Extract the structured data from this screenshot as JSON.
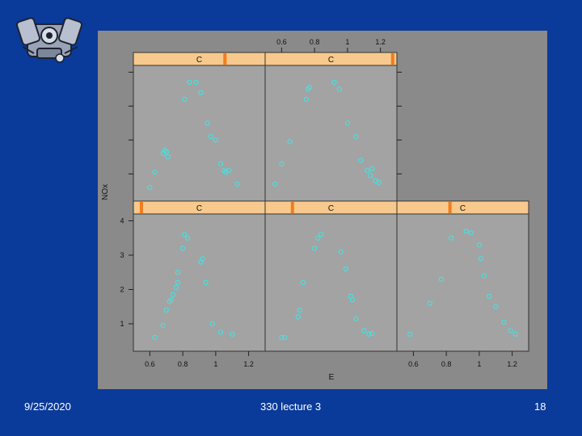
{
  "slide": {
    "date": "9/25/2020",
    "footer_center": "330 lecture 3",
    "page_number": "18",
    "logo_icon": "engine-icon"
  },
  "colors": {
    "background": "#0a3a9a",
    "plot_bg": "#8a8a8a",
    "panel_bg": "#a3a3a3",
    "strip_bg": "#f7c98c",
    "strip_marker": "#f47c1c",
    "points": "#3fe6e6"
  },
  "chart_data": {
    "type": "scatter",
    "layout": "trellis 3 columns x 2 rows",
    "xlabel": "E",
    "ylabel": "NOx",
    "xlim": [
      0.5,
      1.3
    ],
    "ylim": [
      0.2,
      4.2
    ],
    "xticks_top": [
      "0.6",
      "0.8",
      "1",
      "1.2"
    ],
    "xticks_bottom_left": [
      "0.6",
      "0.8",
      "1",
      "1.2"
    ],
    "xticks_bottom_right": [
      "0.6",
      "0.8",
      "1",
      "1.2"
    ],
    "yticks_left": [
      "1",
      "2",
      "3",
      "4"
    ],
    "panels": [
      {
        "row": "bottom",
        "col": 1,
        "strip": "C",
        "marker": 0.05,
        "points": [
          [
            0.63,
            0.6
          ],
          [
            0.68,
            0.95
          ],
          [
            0.7,
            1.4
          ],
          [
            0.72,
            1.65
          ],
          [
            0.73,
            1.7
          ],
          [
            0.74,
            1.85
          ],
          [
            0.76,
            2.05
          ],
          [
            0.77,
            2.2
          ],
          [
            0.77,
            2.5
          ],
          [
            0.8,
            3.2
          ],
          [
            0.81,
            3.6
          ],
          [
            0.83,
            3.5
          ],
          [
            0.91,
            2.8
          ],
          [
            0.92,
            2.9
          ],
          [
            0.94,
            2.2
          ],
          [
            0.98,
            1.0
          ],
          [
            1.03,
            0.75
          ],
          [
            1.1,
            0.7
          ]
        ]
      },
      {
        "row": "bottom",
        "col": 2,
        "strip": "C",
        "marker": 0.2,
        "points": [
          [
            0.6,
            0.6
          ],
          [
            0.62,
            0.6
          ],
          [
            0.7,
            1.2
          ],
          [
            0.71,
            1.4
          ],
          [
            0.73,
            2.2
          ],
          [
            0.8,
            3.2
          ],
          [
            0.82,
            3.5
          ],
          [
            0.84,
            3.6
          ],
          [
            0.96,
            3.1
          ],
          [
            0.99,
            2.6
          ],
          [
            1.02,
            1.8
          ],
          [
            1.03,
            1.7
          ],
          [
            1.05,
            1.15
          ],
          [
            1.1,
            0.8
          ],
          [
            1.13,
            0.7
          ],
          [
            1.15,
            0.72
          ]
        ]
      },
      {
        "row": "bottom",
        "col": 3,
        "strip": "C",
        "marker": 0.4,
        "points": [
          [
            0.58,
            0.7
          ],
          [
            0.7,
            1.6
          ],
          [
            0.77,
            2.3
          ],
          [
            0.83,
            3.5
          ],
          [
            0.92,
            3.7
          ],
          [
            0.95,
            3.65
          ],
          [
            1.0,
            3.3
          ],
          [
            1.01,
            2.9
          ],
          [
            1.03,
            2.4
          ],
          [
            1.06,
            1.8
          ],
          [
            1.1,
            1.5
          ],
          [
            1.15,
            1.05
          ],
          [
            1.19,
            0.8
          ],
          [
            1.22,
            0.7
          ]
        ]
      },
      {
        "row": "top",
        "col": 1,
        "strip": "C",
        "marker": 0.7,
        "points": [
          [
            0.6,
            0.6
          ],
          [
            0.63,
            1.05
          ],
          [
            0.68,
            1.6
          ],
          [
            0.69,
            1.7
          ],
          [
            0.7,
            1.65
          ],
          [
            0.71,
            1.5
          ],
          [
            0.81,
            3.2
          ],
          [
            0.84,
            3.7
          ],
          [
            0.88,
            3.7
          ],
          [
            0.91,
            3.4
          ],
          [
            0.95,
            2.5
          ],
          [
            0.97,
            2.1
          ],
          [
            1.0,
            2.0
          ],
          [
            1.03,
            1.3
          ],
          [
            1.05,
            1.1
          ],
          [
            1.06,
            1.05
          ],
          [
            1.08,
            1.1
          ],
          [
            1.13,
            0.7
          ]
        ]
      },
      {
        "row": "top",
        "col": 2,
        "strip": "C",
        "marker": 0.98,
        "points": [
          [
            0.56,
            0.7
          ],
          [
            0.6,
            1.3
          ],
          [
            0.65,
            1.95
          ],
          [
            0.75,
            3.2
          ],
          [
            0.76,
            3.5
          ],
          [
            0.77,
            3.55
          ],
          [
            0.92,
            3.7
          ],
          [
            0.95,
            3.5
          ],
          [
            1.0,
            2.5
          ],
          [
            1.05,
            2.1
          ],
          [
            1.08,
            1.4
          ],
          [
            1.12,
            1.1
          ],
          [
            1.14,
            0.95
          ],
          [
            1.15,
            1.15
          ],
          [
            1.17,
            0.8
          ],
          [
            1.19,
            0.75
          ]
        ]
      }
    ]
  }
}
